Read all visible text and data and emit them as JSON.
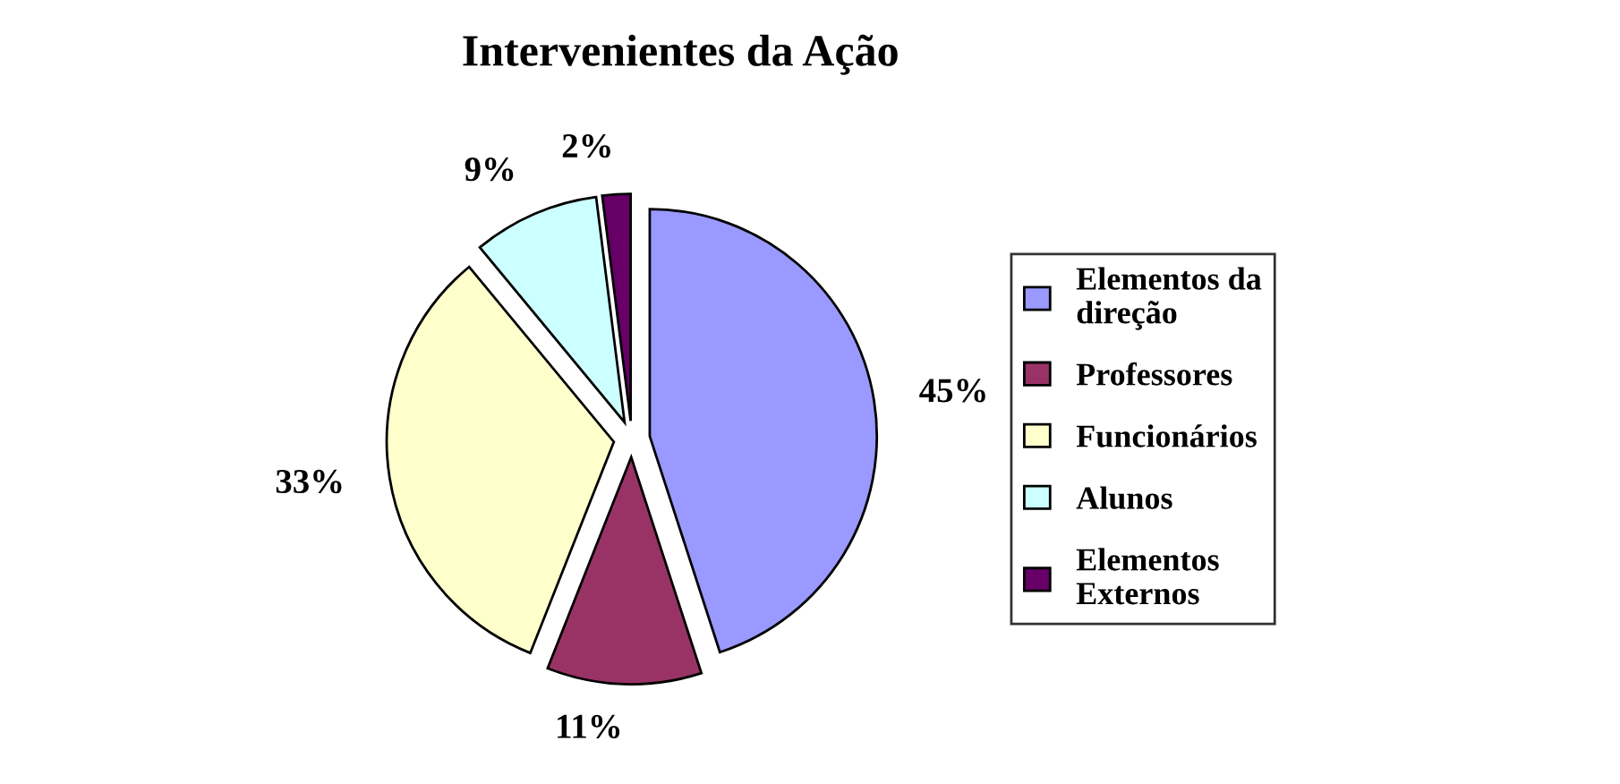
{
  "chart_data": {
    "type": "pie",
    "title": "Intervenientes da Ação",
    "categories": [
      "Elementos da\ndireção",
      "Professores",
      "Funcionários",
      "Alunos",
      "Elementos\nExternos"
    ],
    "values": [
      45,
      11,
      33,
      9,
      2
    ],
    "colors": [
      "#9999ff",
      "#993366",
      "#ffffcc",
      "#ccffff",
      "#660066"
    ],
    "value_labels": [
      "45%",
      "11%",
      "33%",
      "9%",
      "2%"
    ],
    "legend": "right"
  }
}
